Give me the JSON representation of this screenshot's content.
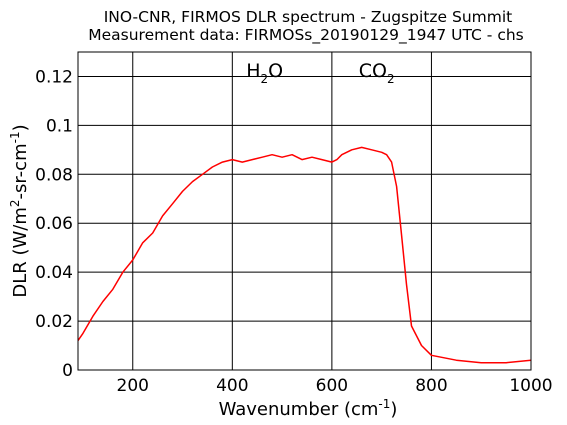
{
  "chart_data": {
    "type": "line",
    "title": "INO-CNR, FIRMOS DLR spectrum - Zugspitze Summit",
    "subtitle": "Measurement data: FIRMOSs_20190129_1947 UTC - chs",
    "xlabel": {
      "main": "Wavenumber (cm",
      "sup": "-1",
      "tail": ")"
    },
    "ylabel": {
      "p1": "DLR (W/m",
      "sup1": "2",
      "p2": "-sr-cm",
      "sup2": "-1",
      "p3": ")"
    },
    "xlim": [
      90,
      1000
    ],
    "ylim": [
      0,
      0.13
    ],
    "xticks": [
      200,
      400,
      600,
      800,
      1000
    ],
    "xtick_labels": [
      "200",
      "400",
      "600",
      "800",
      "1000"
    ],
    "yticks": [
      0,
      0.02,
      0.04,
      0.06,
      0.08,
      0.1,
      0.12
    ],
    "ytick_labels": [
      "0",
      "0.02",
      "0.04",
      "0.06",
      "0.08",
      "0.1",
      "0.12"
    ],
    "grid": true,
    "series_color": "#ff0000",
    "annotations": [
      {
        "base": "H",
        "sub": "2",
        "tail": "O",
        "x": 465,
        "y": 0.15
      },
      {
        "base": "CO",
        "sub": "2",
        "tail": "",
        "x": 690,
        "y": 0.15
      }
    ],
    "series": [
      {
        "x": [
          90,
          100,
          120,
          140,
          160,
          180,
          200,
          220,
          240,
          260,
          280,
          300,
          320,
          340,
          360,
          380,
          400,
          420,
          440,
          460,
          480,
          500,
          520,
          540,
          560,
          580,
          600,
          610,
          620,
          640,
          660,
          680,
          700,
          710,
          720,
          730,
          740,
          750,
          760,
          780,
          800,
          850,
          900,
          950,
          1000
        ],
        "y": [
          0.012,
          0.015,
          0.022,
          0.028,
          0.033,
          0.04,
          0.045,
          0.052,
          0.056,
          0.063,
          0.068,
          0.073,
          0.077,
          0.08,
          0.083,
          0.085,
          0.086,
          0.085,
          0.086,
          0.087,
          0.088,
          0.087,
          0.088,
          0.086,
          0.087,
          0.086,
          0.085,
          0.086,
          0.088,
          0.09,
          0.091,
          0.09,
          0.089,
          0.088,
          0.085,
          0.075,
          0.055,
          0.035,
          0.018,
          0.01,
          0.006,
          0.004,
          0.003,
          0.003,
          0.004
        ]
      }
    ]
  }
}
